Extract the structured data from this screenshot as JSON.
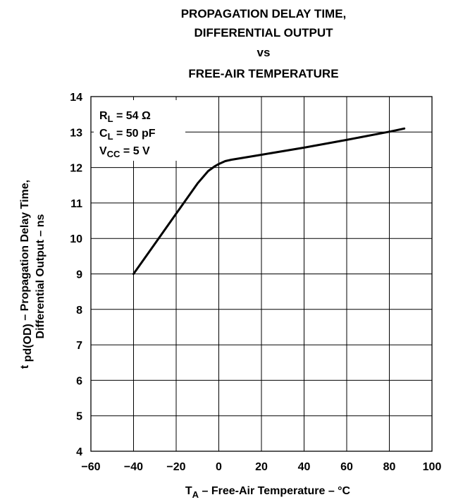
{
  "chart_data": {
    "type": "line",
    "title": [
      "PROPAGATION DELAY TIME,",
      "DIFFERENTIAL OUTPUT",
      "vs",
      "FREE-AIR TEMPERATURE"
    ],
    "xlabel": {
      "main": "T",
      "sub": "A",
      "rest": " – Free-Air Temperature – °C"
    },
    "ylabel": {
      "line1_pre": "t ",
      "line1_sub": "pd(OD)",
      "line1_rest": " – Propagation Delay Time,",
      "line2": "Differential Output – ns"
    },
    "xlim": [
      -60,
      100
    ],
    "ylim": [
      4,
      14
    ],
    "xticks": [
      -60,
      -40,
      -20,
      0,
      20,
      40,
      60,
      80,
      100
    ],
    "yticks": [
      4,
      5,
      6,
      7,
      8,
      9,
      10,
      11,
      12,
      13,
      14
    ],
    "xtick_labels": [
      "−60",
      "−40",
      "−20",
      "0",
      "20",
      "40",
      "60",
      "80",
      "100"
    ],
    "grid": true,
    "annotations": [
      {
        "main": "R",
        "sub": "L",
        "rest": " = 54 Ω"
      },
      {
        "main": "C",
        "sub": "L",
        "rest": " = 50 pF"
      },
      {
        "main": "V",
        "sub": "CC",
        "rest": " = 5 V"
      }
    ],
    "series": [
      {
        "x": [
          -40,
          -30,
          -20,
          -10,
          -5,
          -2,
          0,
          3,
          6,
          10,
          20,
          40,
          60,
          80,
          87
        ],
        "y": [
          9.0,
          9.85,
          10.7,
          11.55,
          11.9,
          12.03,
          12.1,
          12.18,
          12.22,
          12.26,
          12.36,
          12.56,
          12.78,
          13.01,
          13.1
        ]
      }
    ]
  }
}
